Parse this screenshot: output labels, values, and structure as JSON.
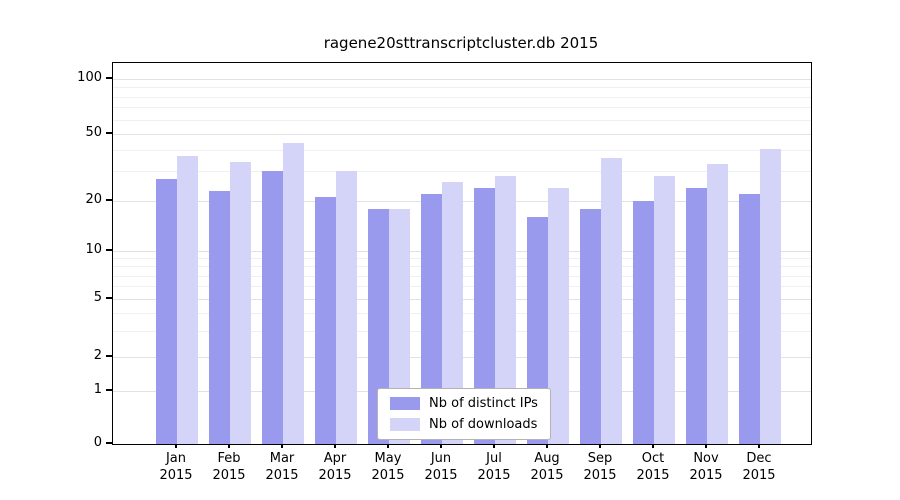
{
  "title": "ragene20sttranscriptcluster.db 2015",
  "axes": {
    "months": [
      "Jan",
      "Feb",
      "Mar",
      "Apr",
      "May",
      "Jun",
      "Jul",
      "Aug",
      "Sep",
      "Oct",
      "Nov",
      "Dec"
    ],
    "year": "2015",
    "y_ticks": [
      0,
      1,
      2,
      5,
      10,
      20,
      50,
      100
    ],
    "y_minor_ticks": [
      3,
      4,
      6,
      7,
      8,
      9,
      30,
      40,
      60,
      70,
      80,
      90
    ]
  },
  "legend": {
    "items": [
      {
        "label": "Nb of distinct IPs",
        "series": "distinct_ips"
      },
      {
        "label": "Nb of downloads",
        "series": "downloads"
      }
    ]
  },
  "colors": {
    "distinct_ips": "#9999ee",
    "downloads": "#d4d4f8",
    "grid_major": "#e2e2e2",
    "grid_minor": "#f0f0f0",
    "spine": "#000000"
  },
  "chart_data": {
    "type": "bar",
    "title": "ragene20sttranscriptcluster.db 2015",
    "categories": [
      "Jan 2015",
      "Feb 2015",
      "Mar 2015",
      "Apr 2015",
      "May 2015",
      "Jun 2015",
      "Jul 2015",
      "Aug 2015",
      "Sep 2015",
      "Oct 2015",
      "Nov 2015",
      "Dec 2015"
    ],
    "series": [
      {
        "name": "Nb of distinct IPs",
        "color": "#9999ee",
        "values": [
          27,
          23,
          30,
          21,
          18,
          22,
          24,
          16,
          18,
          20,
          24,
          22
        ]
      },
      {
        "name": "Nb of downloads",
        "color": "#d4d4f8",
        "values": [
          37,
          34,
          44,
          30,
          18,
          26,
          28,
          24,
          36,
          28,
          33,
          41
        ]
      }
    ],
    "xlabel": "",
    "ylabel": "",
    "yscale": "log-like",
    "ylim": [
      0,
      100
    ],
    "yticks": [
      0,
      1,
      2,
      5,
      10,
      20,
      50,
      100
    ],
    "grid": true,
    "legend_position": "lower center inside plot"
  }
}
